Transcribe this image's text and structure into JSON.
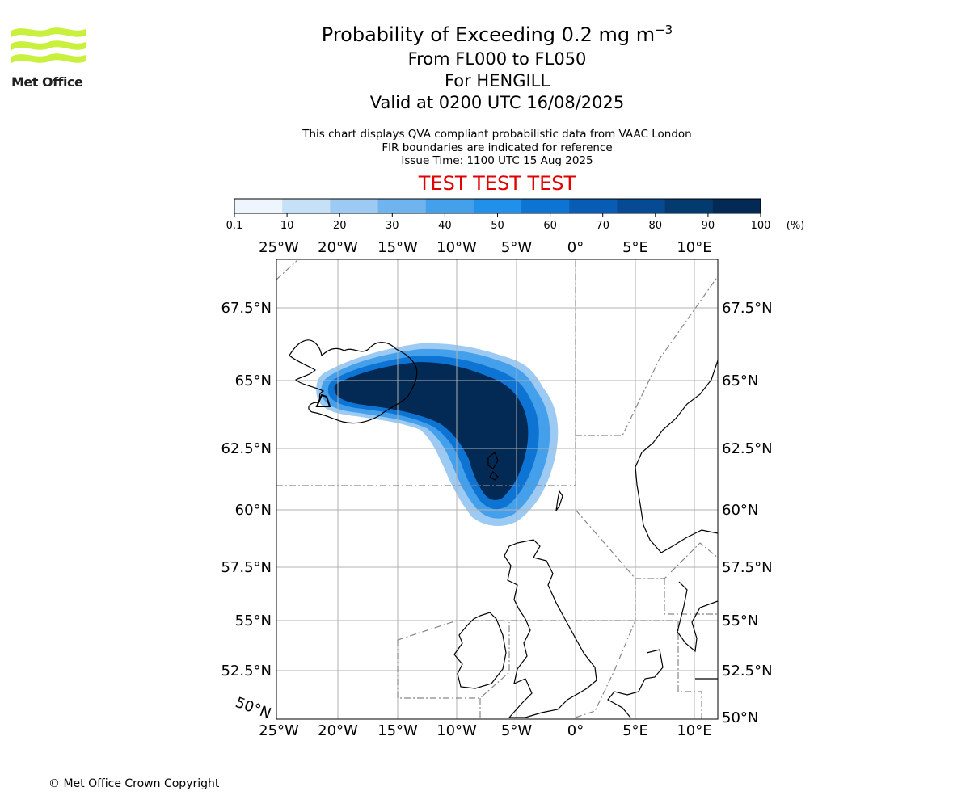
{
  "logo": {
    "name": "Met Office",
    "colors": {
      "waves": "#c8f03c",
      "text": "#222222"
    }
  },
  "title": {
    "main": "Probability of Exceeding 0.2 mg m",
    "main_exponent": "−3",
    "levels": "From FL000 to FL050",
    "volcano": "For HENGILL",
    "valid": "Valid at 0200 UTC 16/08/2025"
  },
  "notes": {
    "line1": "This chart displays QVA compliant probabilistic data from VAAC London",
    "line2": "FIR boundaries are indicated for reference",
    "line3": "Issue Time: 1100 UTC 15 Aug 2025"
  },
  "test_banner": "TEST TEST TEST",
  "colorbar": {
    "ticks": [
      "0.1",
      "10",
      "20",
      "30",
      "40",
      "50",
      "60",
      "70",
      "80",
      "90",
      "100"
    ],
    "unit": "(%)",
    "colors": [
      "#eef5fd",
      "#c6e0f8",
      "#9ccaf3",
      "#6fb3ef",
      "#45a0ec",
      "#2090ea",
      "#0e74d4",
      "#085cb4",
      "#054a92",
      "#033a70",
      "#022a55"
    ]
  },
  "map": {
    "lon_labels": [
      "25°W",
      "20°W",
      "15°W",
      "10°W",
      "5°W",
      "0°",
      "5°E",
      "10°E"
    ],
    "lat_labels_left": [
      "67.5°N",
      "65°N",
      "62.5°N",
      "60°N",
      "57.5°N",
      "55°N",
      "52.5°N"
    ],
    "lat_labels_right": [
      "67.5°N",
      "65°N",
      "62.5°N",
      "60°N",
      "57.5°N",
      "55°N",
      "52.5°N",
      "50°N"
    ],
    "rotated_label": "50°N"
  },
  "copyright": "© Met Office Crown Copyright"
}
